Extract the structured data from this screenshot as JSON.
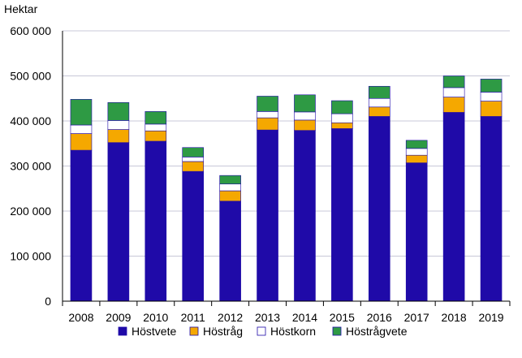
{
  "chart_data": {
    "type": "bar",
    "stacked": true,
    "ylabel": "Hektar",
    "ylim": [
      0,
      600000
    ],
    "yticks": [
      0,
      100000,
      200000,
      300000,
      400000,
      500000,
      600000
    ],
    "ytick_labels": [
      "0",
      "100 000",
      "200 000",
      "300 000",
      "400 000",
      "500 000",
      "600 000"
    ],
    "grid": true,
    "legend_position": "bottom",
    "categories": [
      "2008",
      "2009",
      "2010",
      "2011",
      "2012",
      "2013",
      "2014",
      "2015",
      "2016",
      "2017",
      "2018",
      "2019"
    ],
    "series": [
      {
        "name": "Höstvete",
        "color": "#1f0aa8",
        "values": [
          335000,
          352000,
          355000,
          288000,
          222000,
          380000,
          379000,
          383000,
          410000,
          307000,
          419000,
          410000
        ]
      },
      {
        "name": "Höstråg",
        "color": "#f5a800",
        "values": [
          37000,
          29000,
          23000,
          22000,
          23000,
          27000,
          23000,
          13000,
          21000,
          17000,
          34000,
          34000
        ]
      },
      {
        "name": "Höstkorn",
        "color": "#ffffff",
        "values": [
          19000,
          20000,
          15000,
          10000,
          15000,
          14000,
          18000,
          20000,
          19000,
          15000,
          21000,
          20000
        ]
      },
      {
        "name": "Höstrågvete",
        "color": "#2e9a44",
        "values": [
          57000,
          40000,
          28000,
          21000,
          19000,
          34000,
          38000,
          29000,
          27000,
          18000,
          26000,
          29000
        ]
      }
    ]
  }
}
